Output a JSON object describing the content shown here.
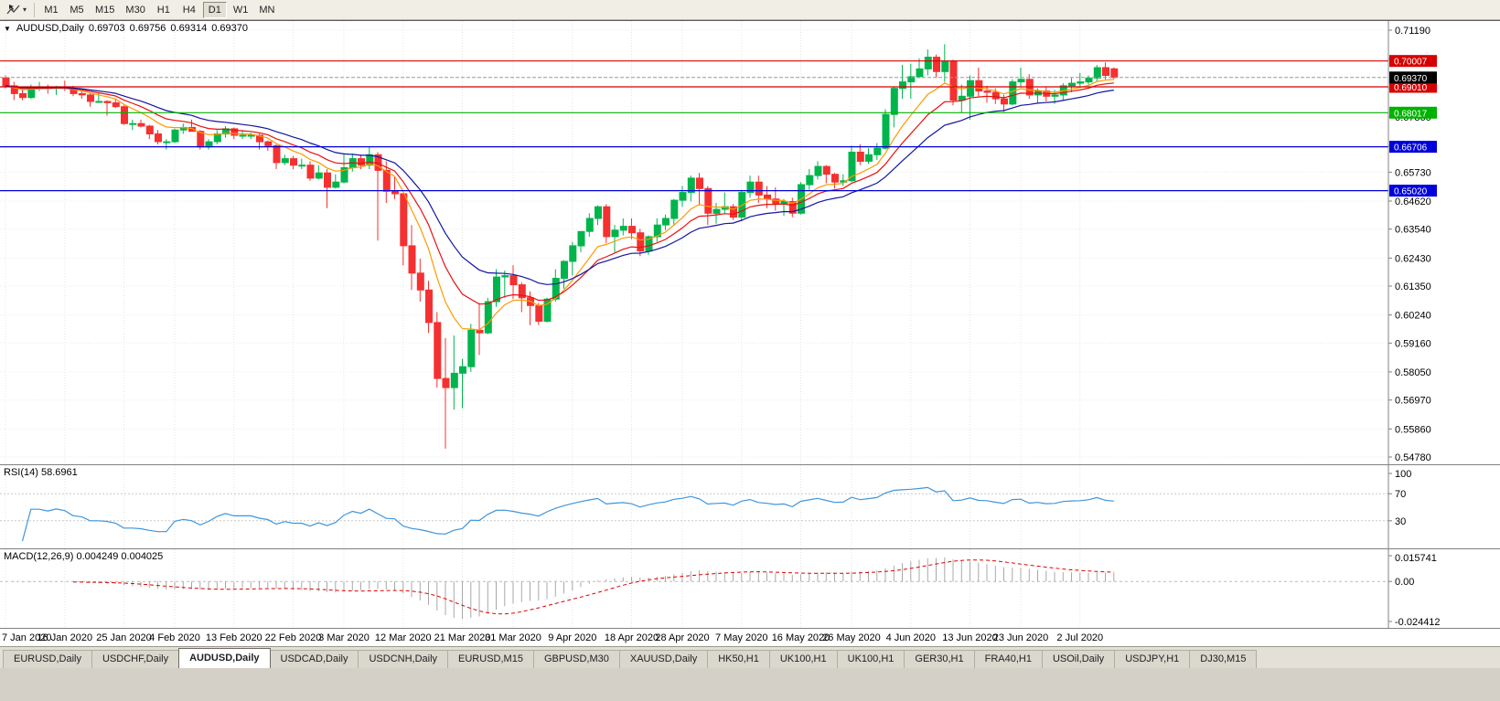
{
  "icons": {
    "collapse": "▼",
    "dropdown": "▾"
  },
  "toolbar": {
    "timeframes": [
      "M1",
      "M5",
      "M15",
      "M30",
      "H1",
      "H4",
      "D1",
      "W1",
      "MN"
    ],
    "active": "D1"
  },
  "chart": {
    "header": {
      "symbol": "AUDUSD,Daily",
      "open": "0.69703",
      "high": "0.69756",
      "low": "0.69314",
      "close": "0.69370"
    },
    "price_axis": {
      "ticks": [
        "0.71190",
        "0.70080",
        "0.68970",
        "0.67860",
        "0.66750",
        "0.65730",
        "0.64620",
        "0.63540",
        "0.62430",
        "0.61350",
        "0.60240",
        "0.59160",
        "0.58050",
        "0.56970",
        "0.55860",
        "0.54780"
      ]
    },
    "hlines": [
      {
        "label": "0.70007",
        "value": 0.70007,
        "color": "#D60000"
      },
      {
        "label": "0.69010",
        "value": 0.6901,
        "color": "#D60000"
      },
      {
        "label": "0.68017",
        "value": 0.68017,
        "color": "#00B300"
      },
      {
        "label": "0.66706",
        "value": 0.66706,
        "color": "#0000DC"
      },
      {
        "label": "0.65020",
        "value": 0.6502,
        "color": "#0000DC"
      }
    ],
    "current_price": {
      "label": "0.69370",
      "value": 0.6937,
      "badge_color": "#000000"
    }
  },
  "rsi": {
    "title": "RSI(14) 58.6961",
    "value": "58.6961",
    "axis_labels": [
      "100",
      "70",
      "30"
    ],
    "level_lines": [
      70,
      30
    ],
    "color": "#3E96DC"
  },
  "macd": {
    "title": "MACD(12,26,9) 0.004249 0.004025",
    "macd_value": "0.004249",
    "signal_value": "0.004025",
    "axis_labels": {
      "top": "0.015741",
      "zero": "0.00",
      "bottom": "-0.024412"
    },
    "histogram_color": "#A8A8A8",
    "signal_color": "#E00000"
  },
  "time_axis": {
    "labels": [
      "7 Jan 2020",
      "16 Jan 2020",
      "25 Jan 2020",
      "4 Feb 2020",
      "13 Feb 2020",
      "22 Feb 2020",
      "3 Mar 2020",
      "12 Mar 2020",
      "21 Mar 2020",
      "31 Mar 2020",
      "9 Apr 2020",
      "18 Apr 2020",
      "28 Apr 2020",
      "7 May 2020",
      "16 May 2020",
      "26 May 2020",
      "4 Jun 2020",
      "13 Jun 2020",
      "23 Jun 2020",
      "2 Jul 2020"
    ]
  },
  "tabs": {
    "items": [
      "EURUSD,Daily",
      "USDCHF,Daily",
      "AUDUSD,Daily",
      "USDCAD,Daily",
      "USDCNH,Daily",
      "EURUSD,M15",
      "GBPUSD,M30",
      "XAUUSD,Daily",
      "HK50,H1",
      "UK100,H1",
      "UK100,H1",
      "GER30,H1",
      "FRA40,H1",
      "USOil,Daily",
      "USDJPY,H1",
      "DJ30,M15"
    ],
    "active_index": 2
  },
  "chart_data": {
    "type": "candlestick",
    "symbol": "AUDUSD",
    "timeframe": "Daily",
    "title": "AUDUSD,Daily",
    "price_scale": {
      "max": 0.7119,
      "min": 0.5478
    },
    "style": {
      "up_color": "#00B44C",
      "down_color": "#F53030"
    },
    "moving_averages": [
      {
        "period": 8,
        "method": "ema",
        "color": "#FF9900"
      },
      {
        "period": 13,
        "method": "ema",
        "color": "#E81010"
      },
      {
        "period": 21,
        "method": "ema",
        "color": "#1414A0"
      }
    ],
    "indicators": [
      {
        "name": "RSI",
        "period": 14,
        "current": 58.6961
      },
      {
        "name": "MACD",
        "fast": 12,
        "slow": 26,
        "signal": 9,
        "current_macd": 0.004249,
        "current_signal": 0.004025
      }
    ],
    "columns": [
      "date",
      "open",
      "high",
      "low",
      "close"
    ],
    "candles": [
      [
        "2020-01-07",
        0.6935,
        0.6945,
        0.6895,
        0.6905
      ],
      [
        "2020-01-08",
        0.6905,
        0.692,
        0.685,
        0.6875
      ],
      [
        "2020-01-09",
        0.6875,
        0.689,
        0.685,
        0.686
      ],
      [
        "2020-01-10",
        0.686,
        0.691,
        0.6855,
        0.69
      ],
      [
        "2020-01-13",
        0.69,
        0.692,
        0.6885,
        0.69
      ],
      [
        "2020-01-14",
        0.69,
        0.691,
        0.6875,
        0.6895
      ],
      [
        "2020-01-15",
        0.6895,
        0.6905,
        0.687,
        0.69
      ],
      [
        "2020-01-16",
        0.69,
        0.6925,
        0.6885,
        0.6895
      ],
      [
        "2020-01-17",
        0.6895,
        0.6905,
        0.6865,
        0.6875
      ],
      [
        "2020-01-20",
        0.6875,
        0.6885,
        0.6855,
        0.687
      ],
      [
        "2020-01-21",
        0.687,
        0.6875,
        0.6825,
        0.6845
      ],
      [
        "2020-01-22",
        0.6845,
        0.688,
        0.684,
        0.6845
      ],
      [
        "2020-01-23",
        0.6845,
        0.685,
        0.679,
        0.684
      ],
      [
        "2020-01-24",
        0.684,
        0.6855,
        0.682,
        0.6825
      ],
      [
        "2020-01-27",
        0.6825,
        0.683,
        0.6755,
        0.676
      ],
      [
        "2020-01-28",
        0.676,
        0.6775,
        0.6735,
        0.676
      ],
      [
        "2020-01-29",
        0.676,
        0.6775,
        0.6745,
        0.675
      ],
      [
        "2020-01-30",
        0.675,
        0.6755,
        0.67,
        0.672
      ],
      [
        "2020-01-31",
        0.672,
        0.6735,
        0.668,
        0.669
      ],
      [
        "2020-02-03",
        0.669,
        0.67,
        0.666,
        0.669
      ],
      [
        "2020-02-04",
        0.669,
        0.674,
        0.6685,
        0.6735
      ],
      [
        "2020-02-05",
        0.6735,
        0.676,
        0.672,
        0.6745
      ],
      [
        "2020-02-06",
        0.6745,
        0.6775,
        0.673,
        0.673
      ],
      [
        "2020-02-07",
        0.673,
        0.6735,
        0.666,
        0.667
      ],
      [
        "2020-02-10",
        0.667,
        0.67,
        0.666,
        0.669
      ],
      [
        "2020-02-11",
        0.669,
        0.6735,
        0.668,
        0.672
      ],
      [
        "2020-02-12",
        0.672,
        0.675,
        0.6705,
        0.674
      ],
      [
        "2020-02-13",
        0.674,
        0.6745,
        0.67,
        0.6715
      ],
      [
        "2020-02-14",
        0.6715,
        0.6735,
        0.67,
        0.6715
      ],
      [
        "2020-02-17",
        0.6715,
        0.6725,
        0.67,
        0.6715
      ],
      [
        "2020-02-18",
        0.6715,
        0.672,
        0.666,
        0.669
      ],
      [
        "2020-02-19",
        0.669,
        0.6695,
        0.6655,
        0.6675
      ],
      [
        "2020-02-20",
        0.6675,
        0.668,
        0.6585,
        0.661
      ],
      [
        "2020-02-21",
        0.661,
        0.664,
        0.66,
        0.6625
      ],
      [
        "2020-02-24",
        0.6625,
        0.6635,
        0.6585,
        0.66
      ],
      [
        "2020-02-25",
        0.66,
        0.6625,
        0.6585,
        0.66
      ],
      [
        "2020-02-26",
        0.66,
        0.6615,
        0.654,
        0.655
      ],
      [
        "2020-02-27",
        0.655,
        0.66,
        0.6545,
        0.657
      ],
      [
        "2020-02-28",
        0.657,
        0.6585,
        0.6435,
        0.6515
      ],
      [
        "2020-03-02",
        0.6515,
        0.6565,
        0.651,
        0.6535
      ],
      [
        "2020-03-03",
        0.6535,
        0.6645,
        0.653,
        0.659
      ],
      [
        "2020-03-04",
        0.659,
        0.6645,
        0.6575,
        0.6625
      ],
      [
        "2020-03-05",
        0.6625,
        0.664,
        0.6585,
        0.66
      ],
      [
        "2020-03-06",
        0.66,
        0.667,
        0.6585,
        0.664
      ],
      [
        "2020-03-09",
        0.664,
        0.665,
        0.631,
        0.658
      ],
      [
        "2020-03-10",
        0.658,
        0.6615,
        0.6455,
        0.65
      ],
      [
        "2020-03-11",
        0.65,
        0.6555,
        0.647,
        0.649
      ],
      [
        "2020-03-12",
        0.649,
        0.649,
        0.6215,
        0.629
      ],
      [
        "2020-03-13",
        0.629,
        0.637,
        0.612,
        0.6185
      ],
      [
        "2020-03-16",
        0.6185,
        0.624,
        0.6075,
        0.612
      ],
      [
        "2020-03-17",
        0.612,
        0.6155,
        0.5955,
        0.5995
      ],
      [
        "2020-03-18",
        0.5995,
        0.6035,
        0.5745,
        0.578
      ],
      [
        "2020-03-19",
        0.578,
        0.5935,
        0.551,
        0.5745
      ],
      [
        "2020-03-20",
        0.5745,
        0.5945,
        0.566,
        0.58
      ],
      [
        "2020-03-23",
        0.58,
        0.5855,
        0.5665,
        0.5825
      ],
      [
        "2020-03-24",
        0.5825,
        0.599,
        0.5805,
        0.5965
      ],
      [
        "2020-03-25",
        0.5965,
        0.607,
        0.587,
        0.5955
      ],
      [
        "2020-03-26",
        0.5955,
        0.609,
        0.595,
        0.6075
      ],
      [
        "2020-03-27",
        0.6075,
        0.62,
        0.6055,
        0.617
      ],
      [
        "2020-03-30",
        0.617,
        0.6195,
        0.609,
        0.6175
      ],
      [
        "2020-03-31",
        0.6175,
        0.6215,
        0.6085,
        0.614
      ],
      [
        "2020-04-01",
        0.614,
        0.615,
        0.6035,
        0.609
      ],
      [
        "2020-04-02",
        0.609,
        0.6115,
        0.5985,
        0.606
      ],
      [
        "2020-04-03",
        0.606,
        0.607,
        0.5985,
        0.6
      ],
      [
        "2020-04-06",
        0.6,
        0.609,
        0.5995,
        0.6085
      ],
      [
        "2020-04-07",
        0.6085,
        0.62,
        0.6075,
        0.6165
      ],
      [
        "2020-04-08",
        0.6165,
        0.6235,
        0.6125,
        0.623
      ],
      [
        "2020-04-09",
        0.623,
        0.6305,
        0.6175,
        0.629
      ],
      [
        "2020-04-10",
        0.629,
        0.6345,
        0.6265,
        0.6345
      ],
      [
        "2020-04-13",
        0.6345,
        0.6415,
        0.6325,
        0.6395
      ],
      [
        "2020-04-14",
        0.6395,
        0.6445,
        0.637,
        0.644
      ],
      [
        "2020-04-15",
        0.644,
        0.645,
        0.63,
        0.6325
      ],
      [
        "2020-04-16",
        0.6325,
        0.637,
        0.6265,
        0.635
      ],
      [
        "2020-04-17",
        0.635,
        0.6395,
        0.633,
        0.6365
      ],
      [
        "2020-04-20",
        0.6365,
        0.6395,
        0.6315,
        0.634
      ],
      [
        "2020-04-21",
        0.634,
        0.6355,
        0.625,
        0.627
      ],
      [
        "2020-04-22",
        0.627,
        0.633,
        0.6255,
        0.6325
      ],
      [
        "2020-04-23",
        0.6325,
        0.6395,
        0.6305,
        0.637
      ],
      [
        "2020-04-24",
        0.637,
        0.641,
        0.635,
        0.6395
      ],
      [
        "2020-04-27",
        0.6395,
        0.647,
        0.637,
        0.6465
      ],
      [
        "2020-04-28",
        0.6465,
        0.652,
        0.644,
        0.6495
      ],
      [
        "2020-04-29",
        0.6495,
        0.656,
        0.646,
        0.655
      ],
      [
        "2020-04-30",
        0.655,
        0.657,
        0.6445,
        0.651
      ],
      [
        "2020-05-01",
        0.651,
        0.652,
        0.637,
        0.6415
      ],
      [
        "2020-05-04",
        0.6415,
        0.6455,
        0.6375,
        0.643
      ],
      [
        "2020-05-05",
        0.643,
        0.6495,
        0.6415,
        0.644
      ],
      [
        "2020-05-06",
        0.644,
        0.645,
        0.639,
        0.64
      ],
      [
        "2020-05-07",
        0.64,
        0.6505,
        0.6385,
        0.6495
      ],
      [
        "2020-05-08",
        0.6495,
        0.656,
        0.6475,
        0.6535
      ],
      [
        "2020-05-11",
        0.6535,
        0.656,
        0.6455,
        0.6485
      ],
      [
        "2020-05-12",
        0.6485,
        0.652,
        0.6435,
        0.647
      ],
      [
        "2020-05-13",
        0.647,
        0.6515,
        0.6425,
        0.645
      ],
      [
        "2020-05-14",
        0.645,
        0.647,
        0.6405,
        0.646
      ],
      [
        "2020-05-15",
        0.646,
        0.6475,
        0.64,
        0.6415
      ],
      [
        "2020-05-18",
        0.6415,
        0.6535,
        0.641,
        0.6525
      ],
      [
        "2020-05-19",
        0.6525,
        0.6585,
        0.6505,
        0.656
      ],
      [
        "2020-05-20",
        0.656,
        0.6615,
        0.6545,
        0.6595
      ],
      [
        "2020-05-21",
        0.6595,
        0.66,
        0.653,
        0.6565
      ],
      [
        "2020-05-22",
        0.6565,
        0.657,
        0.651,
        0.6535
      ],
      [
        "2020-05-25",
        0.6535,
        0.6565,
        0.652,
        0.654
      ],
      [
        "2020-05-26",
        0.654,
        0.6675,
        0.6535,
        0.665
      ],
      [
        "2020-05-27",
        0.665,
        0.668,
        0.66,
        0.6615
      ],
      [
        "2020-05-28",
        0.6615,
        0.6665,
        0.6605,
        0.664
      ],
      [
        "2020-05-29",
        0.664,
        0.6685,
        0.662,
        0.6665
      ],
      [
        "2020-06-01",
        0.6665,
        0.6815,
        0.666,
        0.6795
      ],
      [
        "2020-06-02",
        0.6795,
        0.69,
        0.6745,
        0.6895
      ],
      [
        "2020-06-03",
        0.6895,
        0.6985,
        0.6855,
        0.692
      ],
      [
        "2020-06-04",
        0.692,
        0.699,
        0.6855,
        0.694
      ],
      [
        "2020-06-05",
        0.694,
        0.701,
        0.6935,
        0.697
      ],
      [
        "2020-06-08",
        0.697,
        0.7045,
        0.6945,
        0.7015
      ],
      [
        "2020-06-09",
        0.7015,
        0.7025,
        0.6935,
        0.696
      ],
      [
        "2020-06-10",
        0.696,
        0.7065,
        0.692,
        0.7
      ],
      [
        "2020-06-11",
        0.7,
        0.7005,
        0.683,
        0.685
      ],
      [
        "2020-06-12",
        0.685,
        0.691,
        0.68,
        0.6865
      ],
      [
        "2020-06-15",
        0.6865,
        0.6945,
        0.6775,
        0.6925
      ],
      [
        "2020-06-16",
        0.6925,
        0.6975,
        0.6865,
        0.6885
      ],
      [
        "2020-06-17",
        0.6885,
        0.6905,
        0.684,
        0.688
      ],
      [
        "2020-06-18",
        0.688,
        0.6895,
        0.6835,
        0.6855
      ],
      [
        "2020-06-19",
        0.6855,
        0.687,
        0.6805,
        0.6835
      ],
      [
        "2020-06-22",
        0.6835,
        0.693,
        0.683,
        0.692
      ],
      [
        "2020-06-23",
        0.692,
        0.6975,
        0.69,
        0.693
      ],
      [
        "2020-06-24",
        0.693,
        0.695,
        0.6855,
        0.687
      ],
      [
        "2020-06-25",
        0.687,
        0.6895,
        0.684,
        0.6885
      ],
      [
        "2020-06-26",
        0.6885,
        0.69,
        0.6845,
        0.6865
      ],
      [
        "2020-06-29",
        0.6865,
        0.689,
        0.6835,
        0.687
      ],
      [
        "2020-06-30",
        0.687,
        0.6915,
        0.685,
        0.6905
      ],
      [
        "2020-07-01",
        0.6905,
        0.6935,
        0.688,
        0.6915
      ],
      [
        "2020-07-02",
        0.6915,
        0.6955,
        0.69,
        0.692
      ],
      [
        "2020-07-03",
        0.692,
        0.6945,
        0.691,
        0.6935
      ],
      [
        "2020-07-06",
        0.6935,
        0.6985,
        0.692,
        0.6975
      ],
      [
        "2020-07-07",
        0.6975,
        0.6995,
        0.693,
        0.6945
      ],
      [
        "2020-07-08",
        0.69703,
        0.69756,
        0.69314,
        0.6937
      ]
    ]
  }
}
